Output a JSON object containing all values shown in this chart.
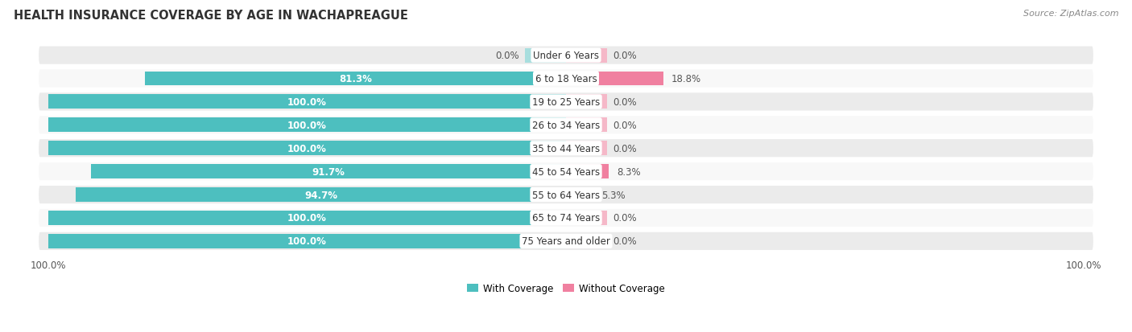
{
  "title": "HEALTH INSURANCE COVERAGE BY AGE IN WACHAPREAGUE",
  "source": "Source: ZipAtlas.com",
  "categories": [
    "Under 6 Years",
    "6 to 18 Years",
    "19 to 25 Years",
    "26 to 34 Years",
    "35 to 44 Years",
    "45 to 54 Years",
    "55 to 64 Years",
    "65 to 74 Years",
    "75 Years and older"
  ],
  "with_coverage": [
    0.0,
    81.3,
    100.0,
    100.0,
    100.0,
    91.7,
    94.7,
    100.0,
    100.0
  ],
  "without_coverage": [
    0.0,
    18.8,
    0.0,
    0.0,
    0.0,
    8.3,
    5.3,
    0.0,
    0.0
  ],
  "color_with": "#4DBFBF",
  "color_without": "#F080A0",
  "color_with_zero": "#A8DEDE",
  "color_without_zero": "#F5B8C8",
  "background_row_odd": "#EBEBEB",
  "background_row_even": "#F8F8F8",
  "bar_height": 0.62,
  "title_fontsize": 10.5,
  "label_fontsize": 8.5,
  "tick_fontsize": 8.5,
  "source_fontsize": 8,
  "zero_stub_size": 8.0,
  "max_val": 100
}
